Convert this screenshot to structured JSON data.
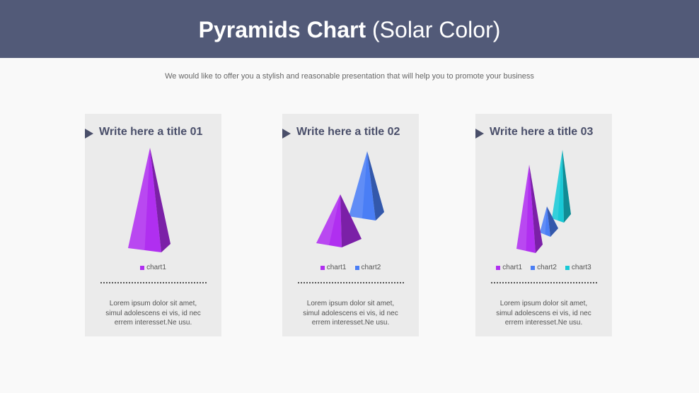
{
  "title_bold": "Pyramids Chart",
  "title_light": "(Solar Color)",
  "subtitle": "We would like to offer you a stylish and reasonable presentation that will help you to promote your business",
  "panels": [
    {
      "title": "Write here a title 01",
      "text": [
        "Lorem ipsum dolor sit amet,",
        "simul adolescens ei vis, id nec",
        "errem interesset.Ne usu."
      ]
    },
    {
      "title": "Write here a title 02",
      "text": [
        "Lorem ipsum dolor sit amet,",
        "simul adolescens ei vis, id nec",
        "errem interesset.Ne usu."
      ]
    },
    {
      "title": "Write here a title 03",
      "text": [
        "Lorem ipsum dolor sit amet,",
        "simul adolescens ei vis, id nec",
        "errem interesset.Ne usu."
      ]
    }
  ],
  "chart_data": [
    {
      "type": "pyramid",
      "series": [
        {
          "name": "chart1",
          "color": "#b02ff0",
          "values": [
            145
          ]
        }
      ]
    },
    {
      "type": "pyramid",
      "series": [
        {
          "name": "chart1",
          "color": "#b02ff0",
          "values": [
            72
          ]
        },
        {
          "name": "chart2",
          "color": "#4a7ef5",
          "values": [
            95
          ]
        }
      ]
    },
    {
      "type": "pyramid",
      "series": [
        {
          "name": "chart1",
          "color": "#b02ff0",
          "values": [
            122
          ]
        },
        {
          "name": "chart2",
          "color": "#4a7ef5",
          "values": [
            40
          ]
        },
        {
          "name": "chart3",
          "color": "#19c9d6",
          "values": [
            100
          ]
        }
      ]
    }
  ]
}
